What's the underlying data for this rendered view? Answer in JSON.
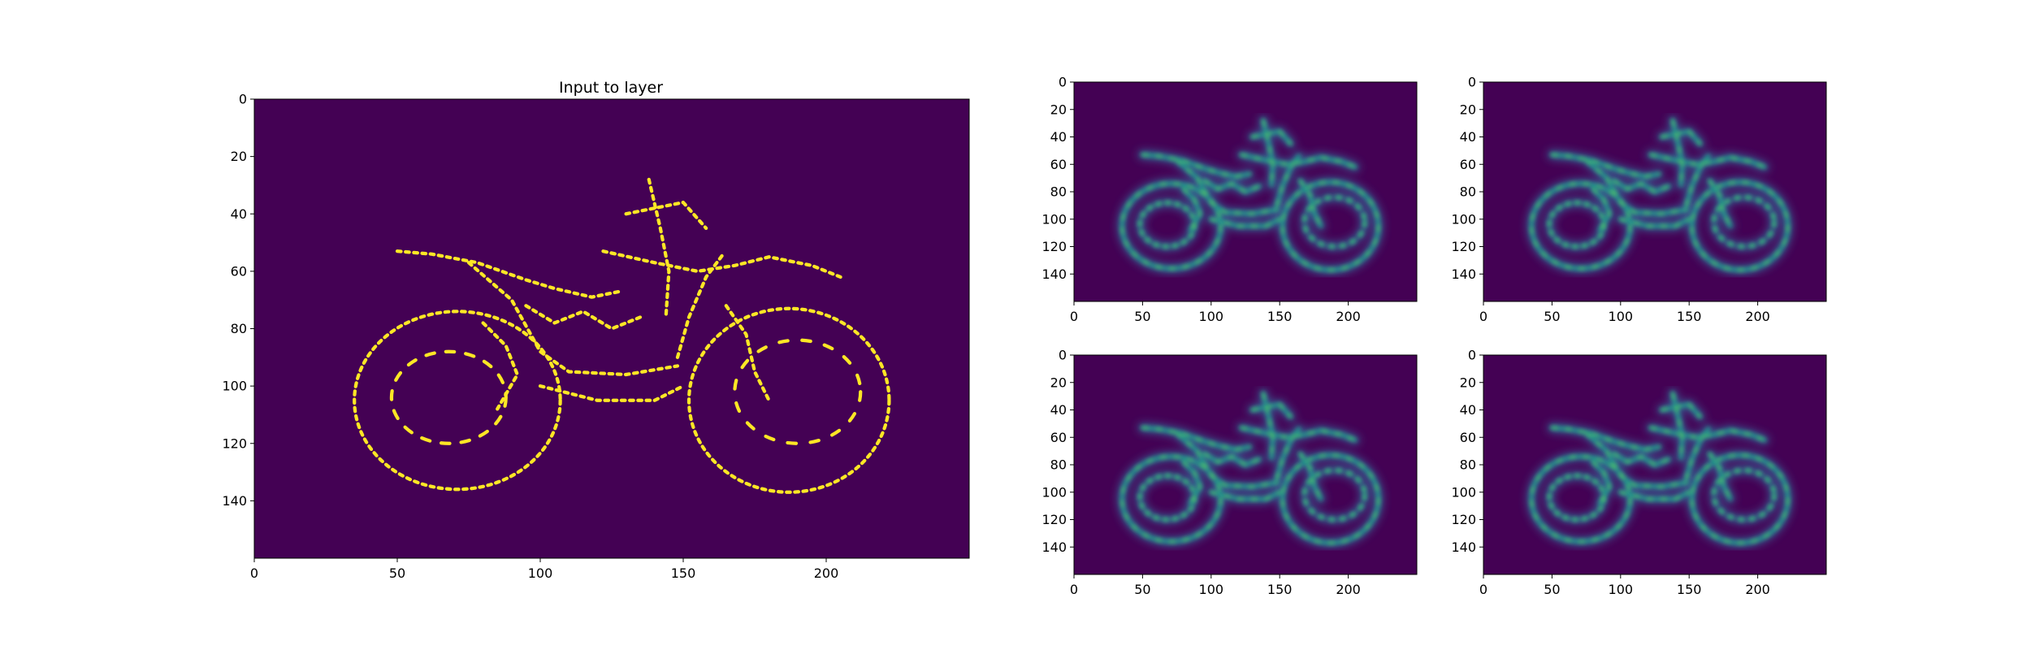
{
  "figure": {
    "background": "#ffffff",
    "colormap": {
      "name": "viridis",
      "low": "#440154",
      "high": "#fde725"
    }
  },
  "chart_data": [
    {
      "type": "heatmap",
      "panel": "main",
      "title": "Input to layer",
      "xlim": [
        0,
        250
      ],
      "ylim": [
        160,
        0
      ],
      "xticks": [
        "0",
        "50",
        "100",
        "150",
        "200"
      ],
      "yticks": [
        "0",
        "20",
        "40",
        "60",
        "80",
        "100",
        "120",
        "140"
      ],
      "content": "binary edge map of a motorcycle",
      "values": [
        0,
        1
      ]
    },
    {
      "type": "heatmap",
      "panel": "feature-1",
      "title": "",
      "xlim": [
        0,
        250
      ],
      "ylim": [
        160,
        0
      ],
      "xticks": [
        "0",
        "50",
        "100",
        "150",
        "200"
      ],
      "yticks": [
        "0",
        "20",
        "40",
        "60",
        "80",
        "100",
        "120",
        "140"
      ],
      "content": "blurred motorcycle activation map"
    },
    {
      "type": "heatmap",
      "panel": "feature-2",
      "title": "",
      "xlim": [
        0,
        250
      ],
      "ylim": [
        160,
        0
      ],
      "xticks": [
        "0",
        "50",
        "100",
        "150",
        "200"
      ],
      "yticks": [
        "0",
        "20",
        "40",
        "60",
        "80",
        "100",
        "120",
        "140"
      ],
      "content": "blurred motorcycle activation map"
    },
    {
      "type": "heatmap",
      "panel": "feature-3",
      "title": "",
      "xlim": [
        0,
        250
      ],
      "ylim": [
        160,
        0
      ],
      "xticks": [
        "0",
        "50",
        "100",
        "150",
        "200"
      ],
      "yticks": [
        "0",
        "20",
        "40",
        "60",
        "80",
        "100",
        "120",
        "140"
      ],
      "content": "blurred motorcycle activation map"
    },
    {
      "type": "heatmap",
      "panel": "feature-4",
      "title": "",
      "xlim": [
        0,
        250
      ],
      "ylim": [
        160,
        0
      ],
      "xticks": [
        "0",
        "50",
        "100",
        "150",
        "200"
      ],
      "yticks": [
        "0",
        "20",
        "40",
        "60",
        "80",
        "100",
        "120",
        "140"
      ],
      "content": "blurred motorcycle activation map"
    }
  ]
}
